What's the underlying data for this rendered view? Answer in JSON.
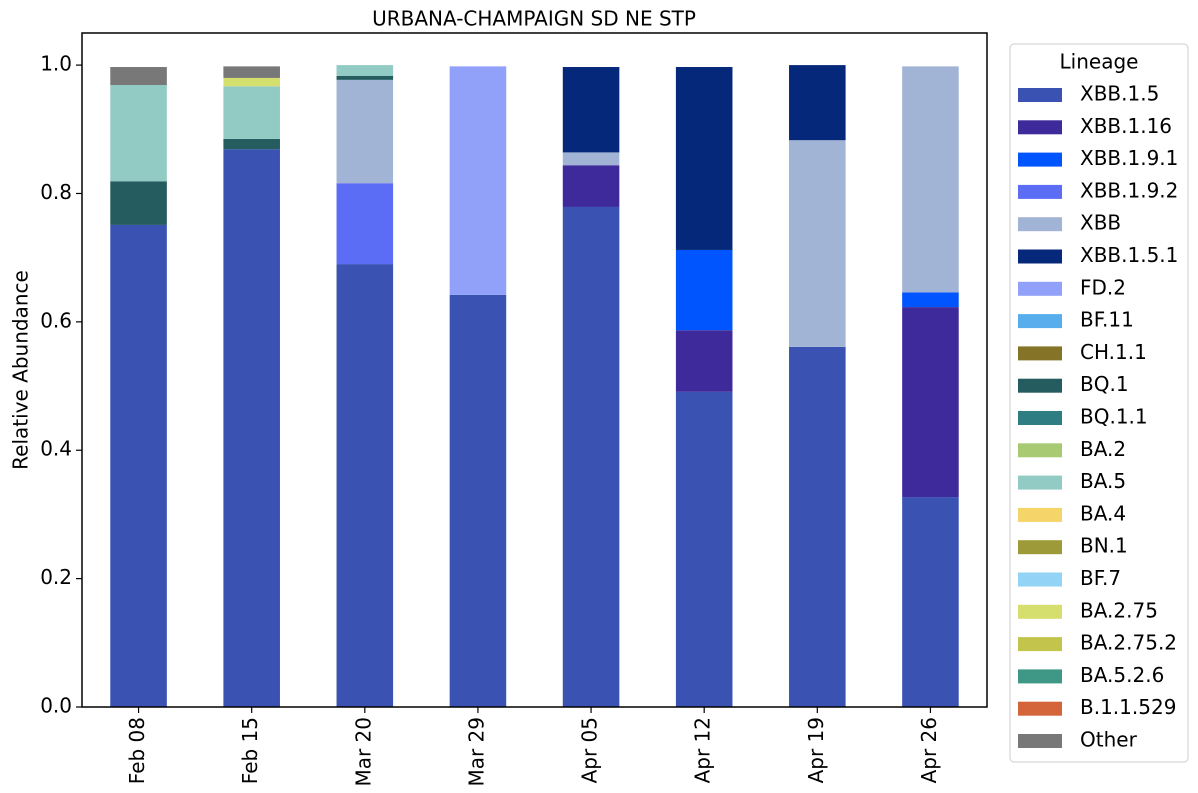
{
  "chart_data": {
    "type": "stacked_bar",
    "title": "URBANA-CHAMPAIGN SD NE STP",
    "ylabel": "Relative Abundance",
    "legend_title": "Lineage",
    "categories": [
      "Feb 08",
      "Feb 15",
      "Mar 20",
      "Mar 29",
      "Apr 05",
      "Apr 12",
      "Apr 19",
      "Apr 26"
    ],
    "ylim": [
      0,
      1.05
    ],
    "yticks": [
      {
        "value": 0,
        "label": "0.0"
      },
      0.2,
      0.4,
      0.6,
      0.8,
      {
        "value": 1,
        "label": "1.0"
      }
    ],
    "legend": "outside right",
    "series": [
      {
        "name": "XBB.1.5",
        "color": "#3a53b2",
        "values": [
          0.751,
          0.869,
          0.69,
          0.642,
          0.779,
          0.491,
          0.561,
          0.327
        ]
      },
      {
        "name": "XBB.1.16",
        "color": "#3f2a9b",
        "values": [
          0,
          0,
          0,
          0,
          0.065,
          0.096,
          0,
          0.296
        ]
      },
      {
        "name": "XBB.1.9.1",
        "color": "#0055ff",
        "values": [
          0,
          0,
          0,
          0,
          0,
          0.125,
          0,
          0.023
        ]
      },
      {
        "name": "XBB.1.9.2",
        "color": "#5b6cf5",
        "values": [
          0,
          0,
          0.126,
          0,
          0,
          0,
          0,
          0
        ]
      },
      {
        "name": "XBB",
        "color": "#a2b4d6",
        "values": [
          0,
          0,
          0.161,
          0,
          0.02,
          0,
          0.322,
          0.352
        ]
      },
      {
        "name": "XBB.1.5.1",
        "color": "#05287a",
        "values": [
          0,
          0,
          0,
          0,
          0.133,
          0.285,
          0.117,
          0
        ]
      },
      {
        "name": "FD.2",
        "color": "#91a0f8",
        "values": [
          0,
          0,
          0,
          0.356,
          0,
          0,
          0,
          0
        ]
      },
      {
        "name": "BF.11",
        "color": "#58aeec",
        "values": [
          0,
          0,
          0,
          0,
          0,
          0,
          0,
          0
        ]
      },
      {
        "name": "CH.1.1",
        "color": "#857427",
        "values": [
          0,
          0,
          0,
          0,
          0,
          0,
          0,
          0
        ]
      },
      {
        "name": "BQ.1",
        "color": "#245c60",
        "values": [
          0.068,
          0.016,
          0.006,
          0,
          0,
          0,
          0,
          0
        ]
      },
      {
        "name": "BQ.1.1",
        "color": "#2e7d82",
        "values": [
          0,
          0,
          0,
          0,
          0,
          0,
          0,
          0
        ]
      },
      {
        "name": "BA.2",
        "color": "#a7ca73",
        "values": [
          0,
          0,
          0,
          0,
          0,
          0,
          0,
          0
        ]
      },
      {
        "name": "BA.5",
        "color": "#92cac4",
        "values": [
          0.15,
          0.082,
          0.017,
          0,
          0,
          0,
          0,
          0
        ]
      },
      {
        "name": "BA.4",
        "color": "#f5d46a",
        "values": [
          0,
          0,
          0,
          0,
          0,
          0,
          0,
          0
        ]
      },
      {
        "name": "BN.1",
        "color": "#9d9a3a",
        "values": [
          0,
          0,
          0,
          0,
          0,
          0,
          0,
          0
        ]
      },
      {
        "name": "BF.7",
        "color": "#93d3f5",
        "values": [
          0,
          0,
          0,
          0,
          0,
          0,
          0,
          0
        ]
      },
      {
        "name": "BA.2.75",
        "color": "#d5df6e",
        "values": [
          0,
          0.013,
          0,
          0,
          0,
          0,
          0,
          0
        ]
      },
      {
        "name": "BA.2.75.2",
        "color": "#c2c44c",
        "values": [
          0,
          0,
          0,
          0,
          0,
          0,
          0,
          0
        ]
      },
      {
        "name": "BA.5.2.6",
        "color": "#3f9886",
        "values": [
          0,
          0,
          0,
          0,
          0,
          0,
          0,
          0
        ]
      },
      {
        "name": "B.1.1.529",
        "color": "#d4653b",
        "values": [
          0,
          0,
          0,
          0,
          0,
          0,
          0,
          0
        ]
      },
      {
        "name": "Other",
        "color": "#787878",
        "values": [
          0.028,
          0.018,
          0,
          0,
          0,
          0,
          0,
          0
        ]
      }
    ]
  }
}
